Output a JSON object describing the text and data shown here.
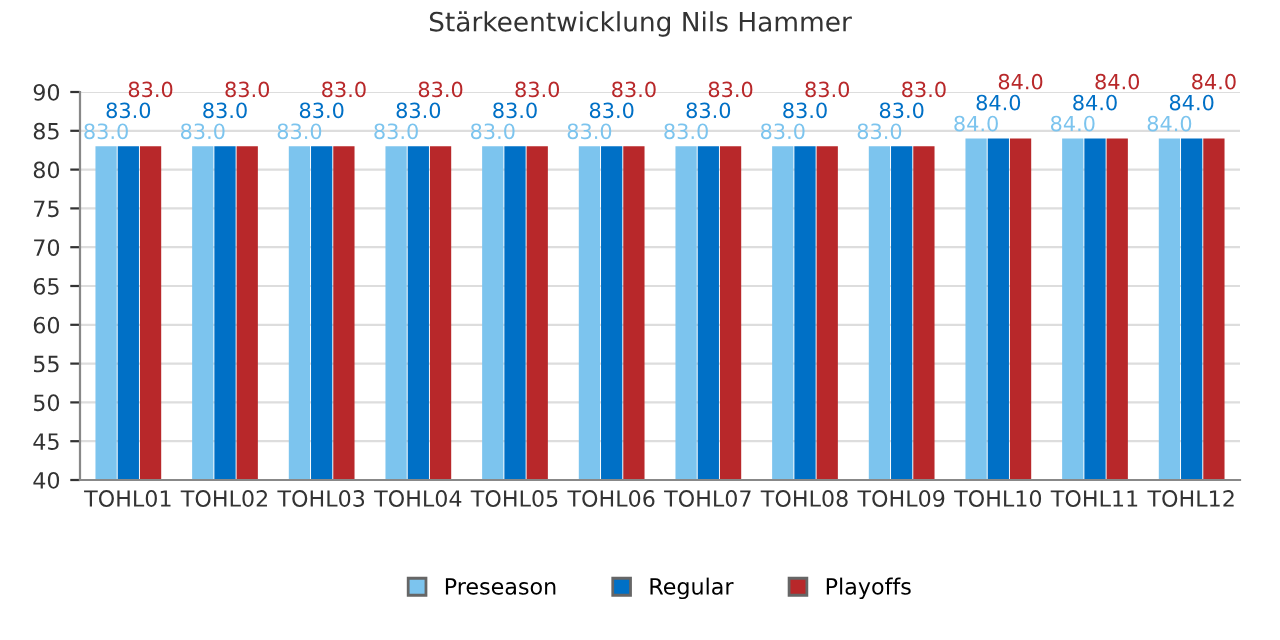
{
  "chart_data": {
    "type": "bar",
    "title": "Stärkeentwicklung Nils Hammer",
    "categories": [
      "TOHL01",
      "TOHL02",
      "TOHL03",
      "TOHL04",
      "TOHL05",
      "TOHL06",
      "TOHL07",
      "TOHL08",
      "TOHL09",
      "TOHL10",
      "TOHL11",
      "TOHL12"
    ],
    "series": [
      {
        "name": "Preseason",
        "color": "#7cc4ee",
        "values": [
          83,
          83,
          83,
          83,
          83,
          83,
          83,
          83,
          83,
          84,
          84,
          84
        ],
        "value_labels": [
          "83.0",
          "83.0",
          "83.0",
          "83.0",
          "83.0",
          "83.0",
          "83.0",
          "83.0",
          "83.0",
          "84.0",
          "84.0",
          "84.0"
        ]
      },
      {
        "name": "Regular",
        "color": "#0070c6",
        "values": [
          83,
          83,
          83,
          83,
          83,
          83,
          83,
          83,
          83,
          84,
          84,
          84
        ],
        "value_labels": [
          "83.0",
          "83.0",
          "83.0",
          "83.0",
          "83.0",
          "83.0",
          "83.0",
          "83.0",
          "83.0",
          "84.0",
          "84.0",
          "84.0"
        ]
      },
      {
        "name": "Playoffs",
        "color": "#b8282a",
        "values": [
          83,
          83,
          83,
          83,
          83,
          83,
          83,
          83,
          83,
          84,
          84,
          84
        ],
        "value_labels": [
          "83.0",
          "83.0",
          "83.0",
          "83.0",
          "83.0",
          "83.0",
          "83.0",
          "83.0",
          "83.0",
          "84.0",
          "84.0",
          "84.0"
        ]
      }
    ],
    "ylim": [
      40,
      90
    ],
    "yticks": [
      40,
      45,
      50,
      55,
      60,
      65,
      70,
      75,
      80,
      85,
      90
    ],
    "grid": "y",
    "legend": "bottom"
  }
}
